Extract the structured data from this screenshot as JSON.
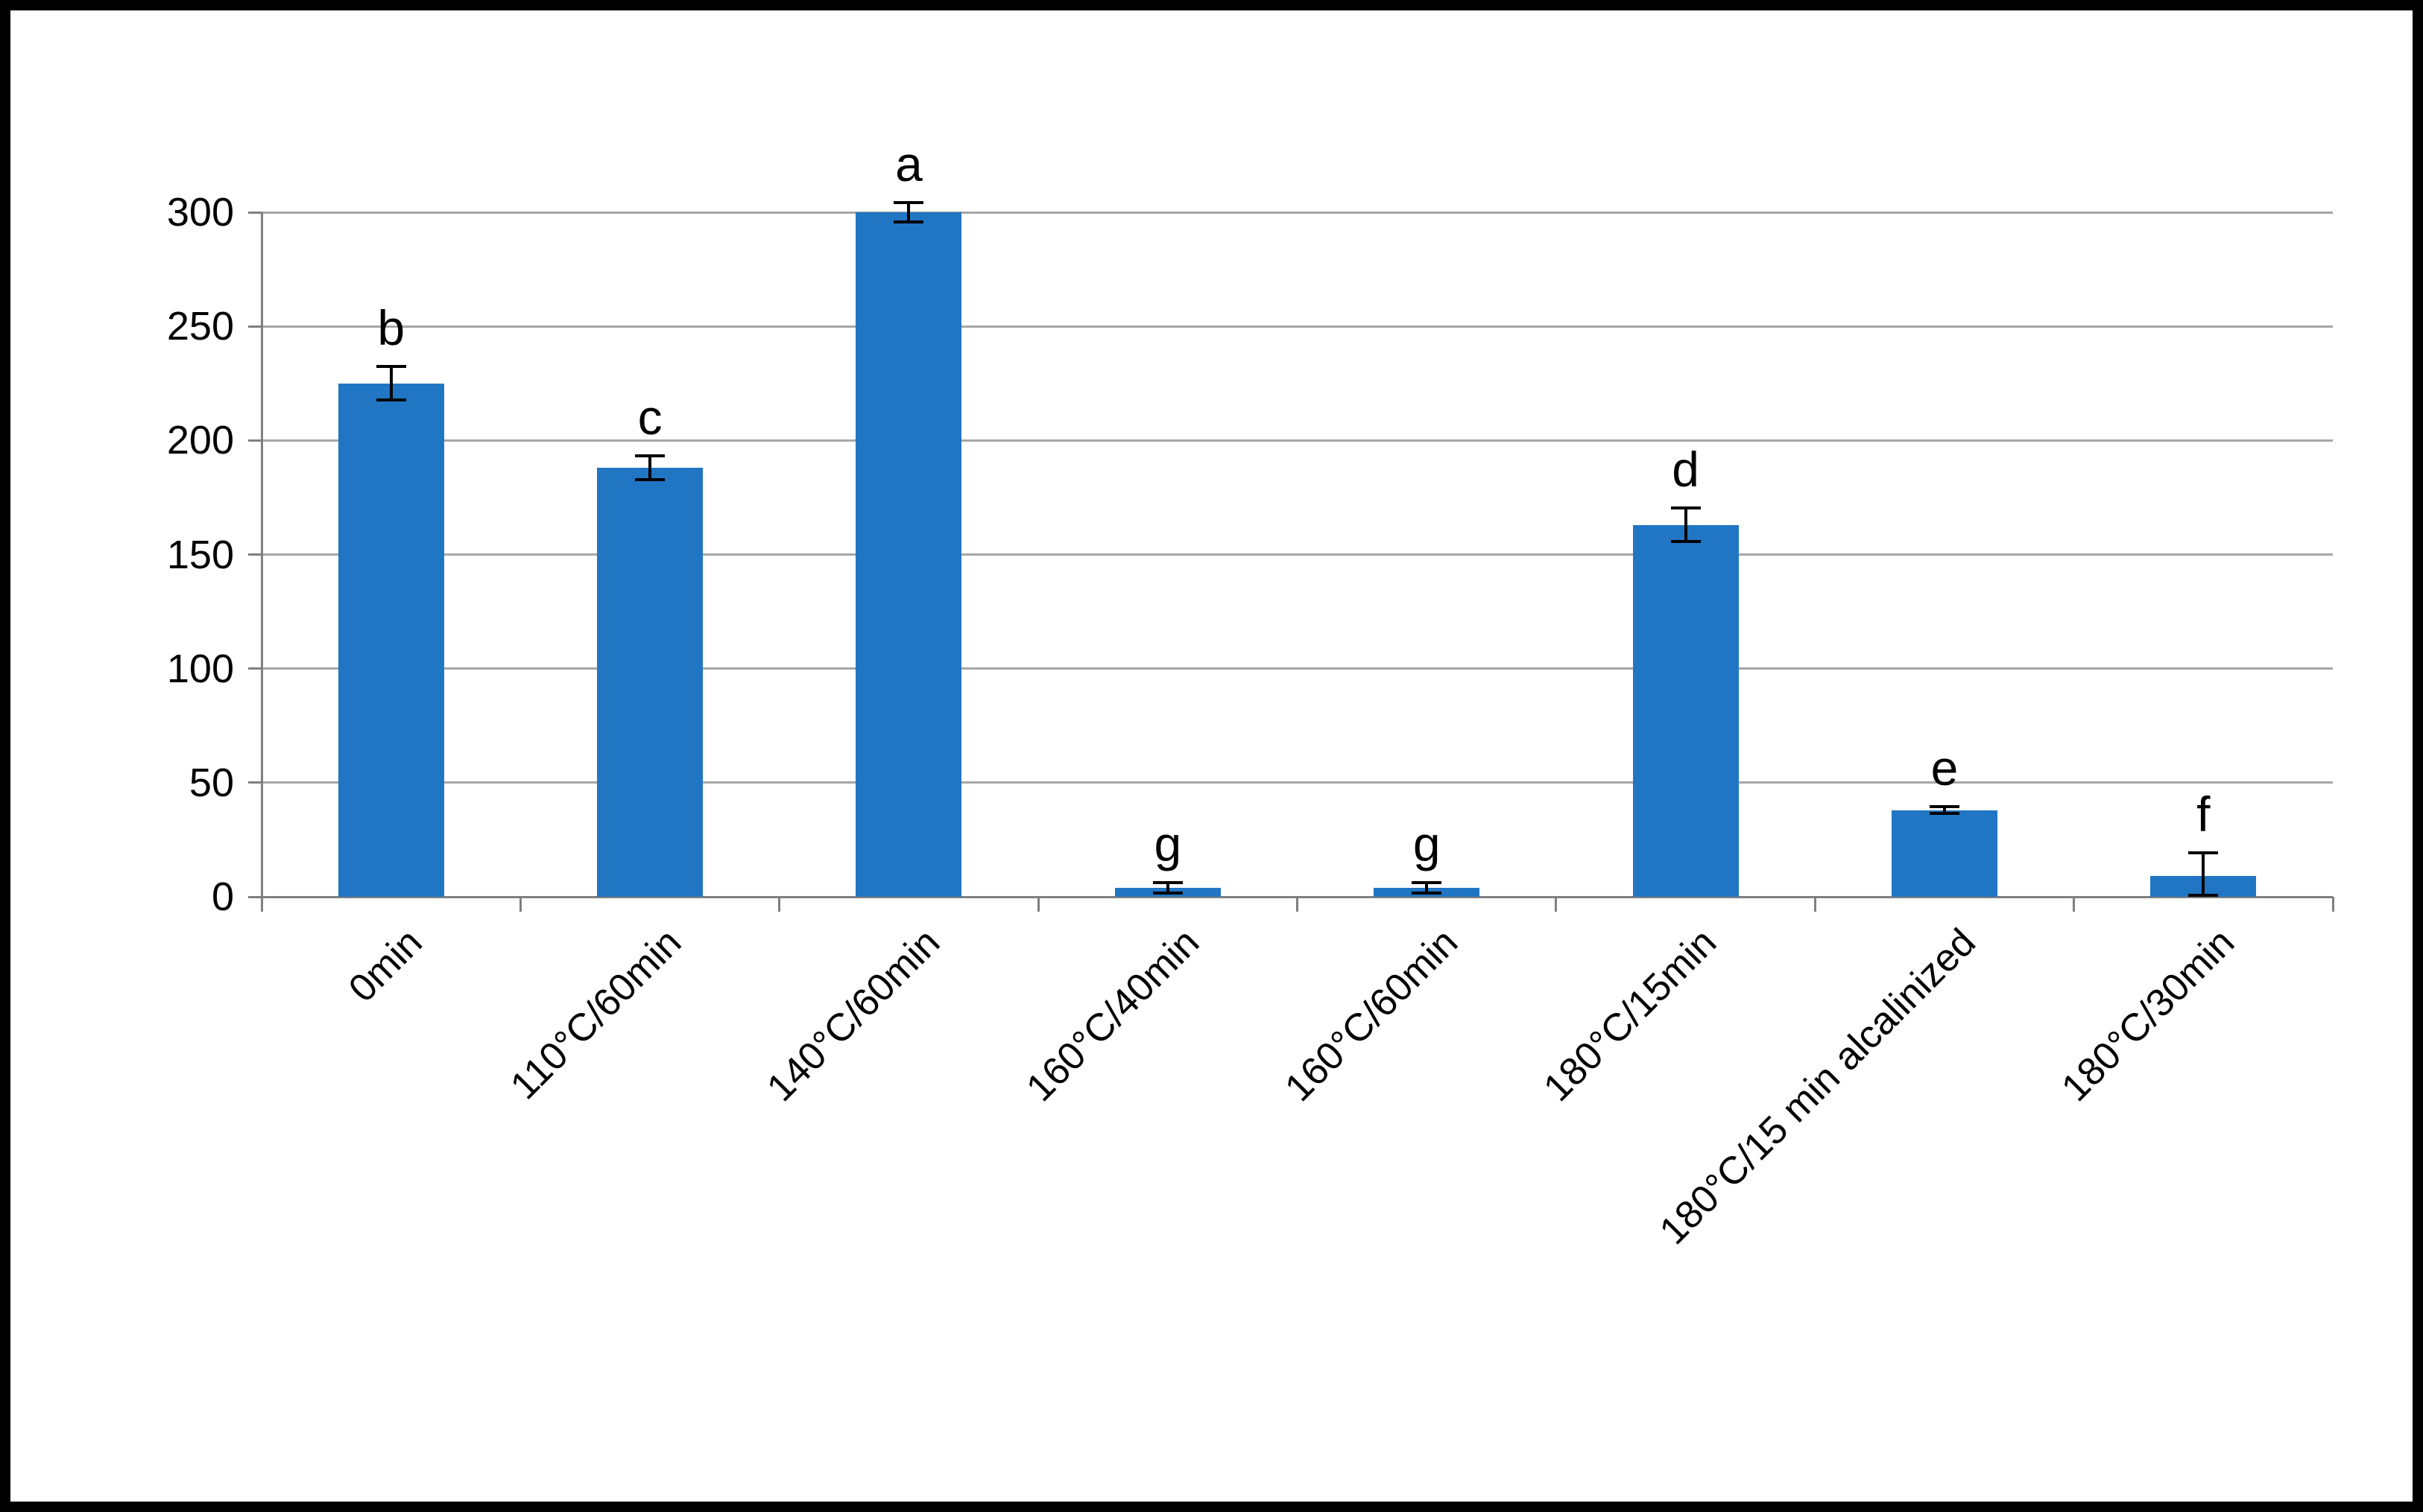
{
  "chart_data": {
    "type": "bar",
    "categories": [
      "0min",
      "110°C/60min",
      "140°C/60min",
      "160°C/40min",
      "160°C/60min",
      "180°C/15min",
      "180°C/15 min alcalinized",
      "180°C/30min"
    ],
    "values": [
      225,
      188,
      300,
      4,
      4,
      163,
      38,
      9
    ],
    "error_bars": [
      8,
      6,
      5,
      3,
      3,
      8,
      2,
      11
    ],
    "bar_labels": [
      "b",
      "c",
      "a",
      "g",
      "g",
      "d",
      "e",
      "f"
    ],
    "title": "",
    "xlabel": "",
    "ylabel": "",
    "ylim": [
      0,
      300
    ],
    "yticks": [
      0,
      50,
      100,
      150,
      200,
      250,
      300
    ],
    "grid": true,
    "legend": false,
    "bar_color": "#2176C4",
    "gridline_color": "#A6A6A6",
    "axis_color": "#7F7F7F",
    "error_bar_color": "#000000",
    "label_color": "#000000"
  }
}
